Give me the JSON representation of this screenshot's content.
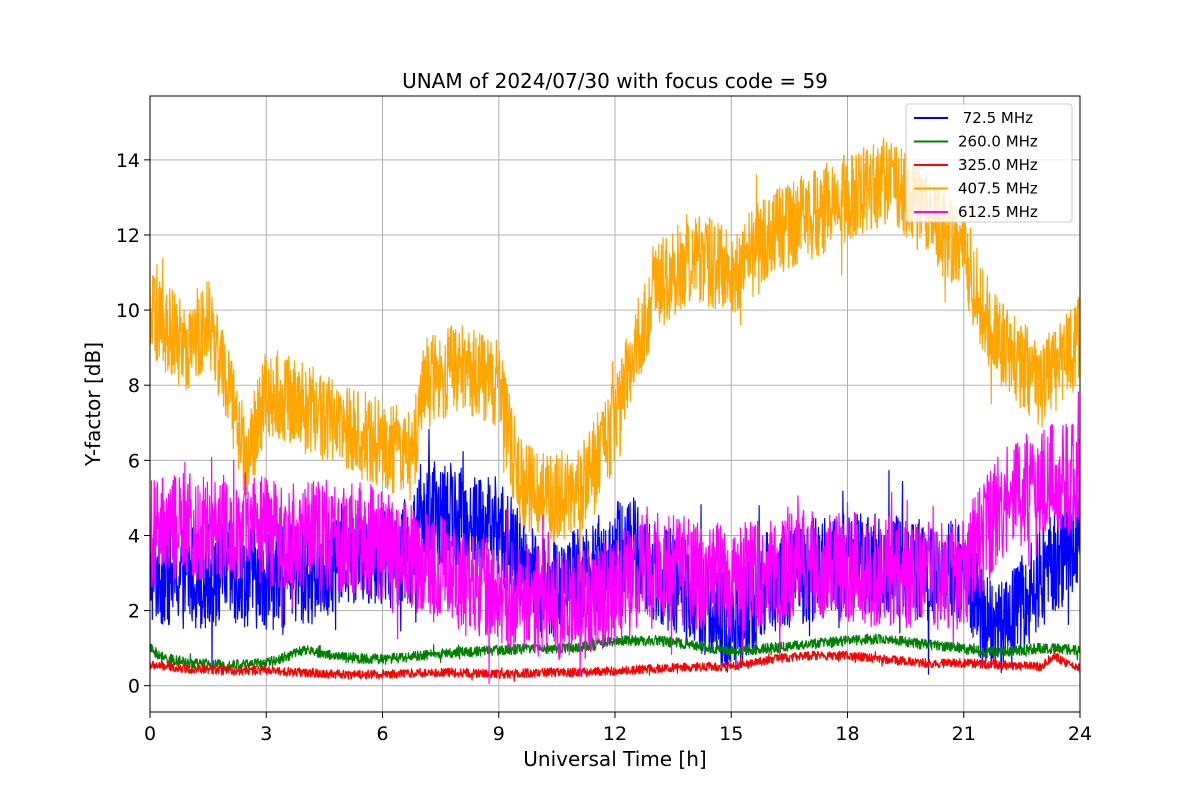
{
  "chart_data": {
    "type": "line",
    "title": "UNAM of 2024/07/30 with focus code = 59",
    "xlabel": "Universal Time [h]",
    "ylabel": "Y-factor [dB]",
    "xlim": [
      0,
      24
    ],
    "ylim": [
      -0.7,
      15.7
    ],
    "xticks": [
      0,
      3,
      6,
      9,
      12,
      15,
      18,
      21,
      24
    ],
    "yticks": [
      0,
      2,
      4,
      6,
      8,
      10,
      12,
      14
    ],
    "grid": true,
    "legend_position": "top-right",
    "series": [
      {
        "name": " 72.5 MHz",
        "color": "#0000ff",
        "noise": 1.4,
        "x": [
          0,
          1,
          2,
          3,
          4,
          5,
          6,
          6.8,
          7,
          8,
          9,
          10,
          11,
          12,
          12.4,
          13,
          14,
          15,
          16,
          17,
          18,
          19,
          20,
          21,
          21.5,
          22,
          23,
          23.5,
          24
        ],
        "y": [
          3.0,
          2.9,
          3.0,
          2.9,
          2.9,
          3.5,
          3.5,
          3.6,
          4.6,
          4.5,
          4.2,
          2.6,
          2.8,
          3.5,
          3.8,
          3.0,
          2.5,
          1.5,
          2.8,
          3.1,
          3.2,
          3.2,
          3.1,
          3.0,
          1.8,
          1.5,
          2.9,
          3.4,
          4.0
        ]
      },
      {
        "name": "260.0 MHz",
        "color": "#008000",
        "noise": 0.14,
        "x": [
          0,
          0.3,
          1,
          2,
          3,
          4,
          5,
          6,
          7,
          8,
          9,
          10,
          11,
          12,
          13,
          14,
          15,
          16,
          17,
          18,
          19,
          20,
          21,
          21.5,
          22,
          23,
          24
        ],
        "y": [
          1.0,
          0.75,
          0.6,
          0.55,
          0.6,
          0.95,
          0.75,
          0.7,
          0.8,
          0.9,
          0.95,
          1.0,
          1.0,
          1.2,
          1.2,
          1.1,
          0.9,
          1.0,
          1.1,
          1.2,
          1.25,
          1.1,
          1.0,
          0.9,
          0.9,
          1.0,
          0.95
        ]
      },
      {
        "name": "325.0 MHz",
        "color": "#ff0000",
        "noise": 0.12,
        "x": [
          0,
          1,
          2,
          3,
          4,
          5,
          6,
          7,
          8,
          9,
          10,
          11,
          12,
          13,
          14,
          15,
          16,
          17,
          18,
          19,
          20,
          21,
          22,
          23,
          23.3,
          24
        ],
        "y": [
          0.55,
          0.45,
          0.4,
          0.4,
          0.35,
          0.3,
          0.3,
          0.35,
          0.35,
          0.3,
          0.35,
          0.35,
          0.4,
          0.45,
          0.5,
          0.5,
          0.7,
          0.8,
          0.8,
          0.7,
          0.6,
          0.6,
          0.55,
          0.5,
          0.8,
          0.4
        ]
      },
      {
        "name": "407.5 MHz",
        "color": "#ffa500",
        "noise": 1.2,
        "x": [
          0,
          1,
          1.5,
          2,
          2.5,
          3,
          4,
          5,
          6,
          6.8,
          7,
          8,
          9,
          9.5,
          10,
          11,
          12,
          12.5,
          13,
          14,
          15,
          16,
          17,
          18,
          19,
          20,
          21,
          21.5,
          22,
          23,
          24
        ],
        "y": [
          9.8,
          9.0,
          9.8,
          8.0,
          6.0,
          7.8,
          7.5,
          6.8,
          6.5,
          6.0,
          8.0,
          8.5,
          8.0,
          5.5,
          5.0,
          5.0,
          7.0,
          8.8,
          10.5,
          11.5,
          11.0,
          12.0,
          12.5,
          13.0,
          13.5,
          12.5,
          11.5,
          10.0,
          9.0,
          8.0,
          9.2
        ]
      },
      {
        "name": "612.5 MHz",
        "color": "#ff00ff",
        "noise": 1.5,
        "x": [
          0,
          1,
          2,
          3,
          4,
          5,
          6,
          7,
          8,
          9,
          10,
          11,
          12,
          13,
          14,
          15,
          16,
          17,
          18,
          19,
          20,
          21,
          21.5,
          22,
          23,
          24
        ],
        "y": [
          4.0,
          4.2,
          4.3,
          4.1,
          4.0,
          4.0,
          3.8,
          3.2,
          2.8,
          2.5,
          2.2,
          2.1,
          2.5,
          3.3,
          3.0,
          2.8,
          3.0,
          3.2,
          3.2,
          3.0,
          3.0,
          3.0,
          4.0,
          4.8,
          5.5,
          5.5
        ]
      }
    ]
  }
}
